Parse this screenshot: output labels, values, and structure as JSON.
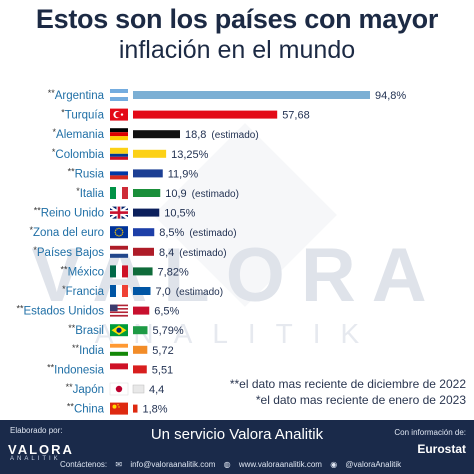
{
  "header": {
    "title_line1": "Estos son los países con mayor",
    "title_line2": "inflación en el mundo"
  },
  "watermark": {
    "line1": "VALORA",
    "line2": "ANALITIK"
  },
  "chart_data": {
    "type": "bar",
    "orientation": "horizontal",
    "xlim": [
      0,
      100
    ],
    "rows": [
      {
        "prefix": "**",
        "country": "Argentina",
        "value": 94.8,
        "label": "94,8%",
        "note": "",
        "bar_color": "#7bafd4",
        "label_inside": true,
        "flag": {
          "type": "h3",
          "colors": [
            "#74acdf",
            "#ffffff",
            "#74acdf"
          ]
        }
      },
      {
        "prefix": "*",
        "country": "Turquía",
        "value": 57.68,
        "label": "57,68",
        "note": "",
        "bar_color": "#e30a17",
        "label_inside": true,
        "flag": {
          "type": "turkey",
          "colors": [
            "#e30a17",
            "#ffffff"
          ]
        }
      },
      {
        "prefix": "*",
        "country": "Alemania",
        "value": 18.8,
        "label": "18,8",
        "note": "(estimado)",
        "bar_color": "#111111",
        "label_inside": false,
        "flag": {
          "type": "h3",
          "colors": [
            "#000000",
            "#dd0000",
            "#ffce00"
          ]
        }
      },
      {
        "prefix": "*",
        "country": "Colombia",
        "value": 13.25,
        "label": "13,25%",
        "note": "",
        "bar_color": "#fcd116",
        "label_inside": false,
        "flag": {
          "type": "colombia",
          "colors": [
            "#fcd116",
            "#003893",
            "#ce1126"
          ]
        }
      },
      {
        "prefix": "**",
        "country": "Rusia",
        "value": 11.9,
        "label": "11,9%",
        "note": "",
        "bar_color": "#1c3f94",
        "label_inside": false,
        "flag": {
          "type": "h3",
          "colors": [
            "#ffffff",
            "#0039a6",
            "#d52b1e"
          ]
        }
      },
      {
        "prefix": "*",
        "country": "Italia",
        "value": 10.9,
        "label": "10,9",
        "note": "(estimado)",
        "bar_color": "#1a8f3a",
        "label_inside": false,
        "flag": {
          "type": "v3",
          "colors": [
            "#009246",
            "#ffffff",
            "#ce2b37"
          ]
        }
      },
      {
        "prefix": "**",
        "country": "Reino Unido",
        "value": 10.5,
        "label": "10,5%",
        "note": "",
        "bar_color": "#0b1f5c",
        "label_inside": false,
        "flag": {
          "type": "uk",
          "colors": [
            "#012169",
            "#ffffff",
            "#c8102e"
          ]
        }
      },
      {
        "prefix": "*",
        "country": "Zona del euro",
        "value": 8.5,
        "label": "8,5%",
        "note": "(estimado)",
        "bar_color": "#1d3fa8",
        "label_inside": false,
        "flag": {
          "type": "eu",
          "colors": [
            "#003399",
            "#ffcc00"
          ]
        }
      },
      {
        "prefix": "*",
        "country": "Países Bajos",
        "value": 8.4,
        "label": "8,4",
        "note": "(estimado)",
        "bar_color": "#ae1c28",
        "label_inside": false,
        "flag": {
          "type": "h3",
          "colors": [
            "#ae1c28",
            "#ffffff",
            "#21468b"
          ]
        }
      },
      {
        "prefix": "**",
        "country": "México",
        "value": 7.82,
        "label": "7,82%",
        "note": "",
        "bar_color": "#0f6b3a",
        "label_inside": false,
        "flag": {
          "type": "v3",
          "colors": [
            "#006847",
            "#ffffff",
            "#ce1126"
          ]
        }
      },
      {
        "prefix": "*",
        "country": "Francia",
        "value": 7.0,
        "label": "7,0",
        "note": "(estimado)",
        "bar_color": "#0055a4",
        "label_inside": false,
        "flag": {
          "type": "v3",
          "colors": [
            "#0055a4",
            "#ffffff",
            "#ef4135"
          ]
        }
      },
      {
        "prefix": "**",
        "country": "Estados Unidos",
        "value": 6.5,
        "label": "6,5%",
        "note": "",
        "bar_color": "#c8102e",
        "label_inside": false,
        "flag": {
          "type": "usa",
          "colors": [
            "#b22234",
            "#ffffff",
            "#3c3b6e"
          ]
        }
      },
      {
        "prefix": "**",
        "country": "Brasil",
        "value": 5.79,
        "label": "5,79%",
        "note": "",
        "bar_color": "#1e9a45",
        "label_inside": false,
        "flag": {
          "type": "brazil",
          "colors": [
            "#009c3b",
            "#ffdf00",
            "#002776"
          ]
        }
      },
      {
        "prefix": "**",
        "country": "India",
        "value": 5.72,
        "label": "5,72",
        "note": "",
        "bar_color": "#f28c28",
        "label_inside": false,
        "flag": {
          "type": "h3",
          "colors": [
            "#ff9933",
            "#ffffff",
            "#138808"
          ]
        }
      },
      {
        "prefix": "**",
        "country": "Indonesia",
        "value": 5.51,
        "label": "5,51",
        "note": "",
        "bar_color": "#d81e1e",
        "label_inside": false,
        "flag": {
          "type": "h2",
          "colors": [
            "#ce1126",
            "#ffffff"
          ]
        }
      },
      {
        "prefix": "**",
        "country": "Japón",
        "value": 4.4,
        "label": "4,4",
        "note": "",
        "bar_color": "#e8e8e8",
        "label_inside": false,
        "flag": {
          "type": "japan",
          "colors": [
            "#ffffff",
            "#bc002d"
          ]
        }
      },
      {
        "prefix": "**",
        "country": "China",
        "value": 1.8,
        "label": "1,8%",
        "note": "",
        "bar_color": "#de2910",
        "label_inside": false,
        "flag": {
          "type": "china",
          "colors": [
            "#de2910",
            "#ffde00"
          ]
        }
      }
    ]
  },
  "notes": {
    "line1": "**el dato mas reciente de diciembre de 2022",
    "line2": "*el dato mas reciente de enero de 2023"
  },
  "footer": {
    "elaborado_por": "Elaborado por:",
    "logo": "VALORA",
    "logo_sub": "ANALITIK",
    "tagline": "Un servicio Valora Analitik",
    "info_label": "Con información de:",
    "source": "Eurostat",
    "contacts_label": "Contáctenos:",
    "email": "info@valoraanalitik.com",
    "web": "www.valoraanalitik.com",
    "social": "@valoraAnalitik",
    "colors": {
      "footer_bg": "#1a2a4a"
    }
  }
}
